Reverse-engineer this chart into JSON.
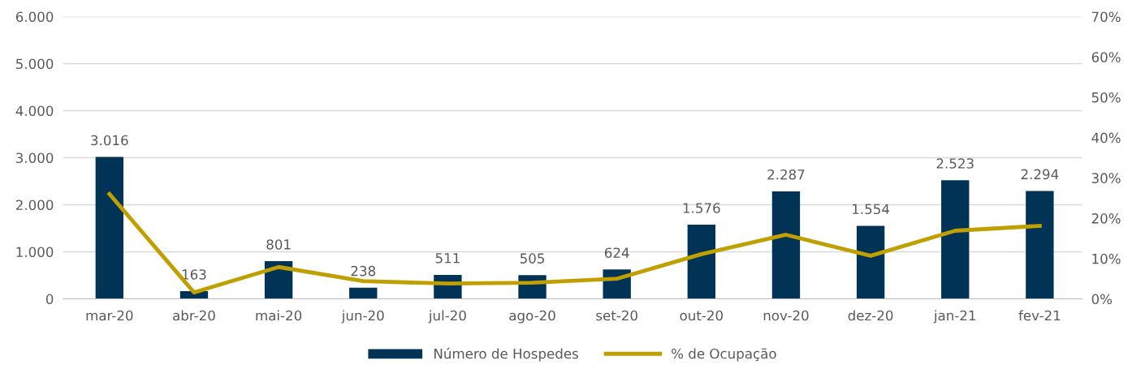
{
  "chart_data": {
    "type": "bar",
    "categories": [
      "mar-20",
      "abr-20",
      "mai-20",
      "jun-20",
      "jul-20",
      "ago-20",
      "set-20",
      "out-20",
      "nov-20",
      "dez-20",
      "jan-21",
      "fev-21"
    ],
    "series": [
      {
        "name": "Número de Hospedes",
        "color": "#003356",
        "values": [
          3016,
          163,
          801,
          238,
          511,
          505,
          624,
          1576,
          2287,
          1554,
          2523,
          2294
        ],
        "value_labels": [
          "3.016",
          "163",
          "801",
          "238",
          "511",
          "505",
          "624",
          "1.576",
          "2.287",
          "1.554",
          "2.523",
          "2.294"
        ]
      },
      {
        "name": "% de Ocupação",
        "type": "line",
        "axis": "y2",
        "color": "#c0a000",
        "values": [
          26,
          1.6,
          7.9,
          4.4,
          3.8,
          4.0,
          5.0,
          11.1,
          15.9,
          10.7,
          16.9,
          18.1
        ]
      }
    ],
    "ylim": [
      0,
      6000
    ],
    "yticks": [
      {
        "value": 0,
        "label": "0"
      },
      {
        "value": 1000,
        "label": "1.000"
      },
      {
        "value": 2000,
        "label": "2.000"
      },
      {
        "value": 3000,
        "label": "3.000"
      },
      {
        "value": 4000,
        "label": "4.000"
      },
      {
        "value": 5000,
        "label": "5.000"
      },
      {
        "value": 6000,
        "label": "6.000"
      }
    ],
    "y2lim": [
      0,
      70
    ],
    "y2ticks": [
      {
        "value": 0,
        "label": "0%"
      },
      {
        "value": 10,
        "label": "10%"
      },
      {
        "value": 20,
        "label": "20%"
      },
      {
        "value": 30,
        "label": "30%"
      },
      {
        "value": 40,
        "label": "40%"
      },
      {
        "value": 50,
        "label": "50%"
      },
      {
        "value": 60,
        "label": "60%"
      },
      {
        "value": 70,
        "label": "70%"
      }
    ],
    "grid": "y",
    "legend": "bottom",
    "marker": "none",
    "line_style": "solid"
  }
}
